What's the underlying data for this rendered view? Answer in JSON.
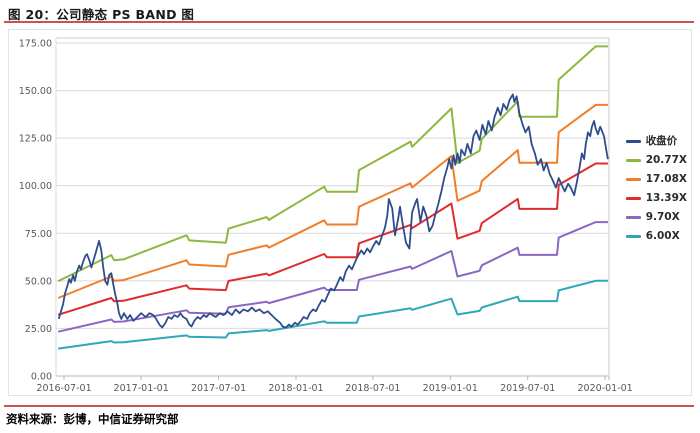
{
  "figure": {
    "title": "图 20：公司静态 PS BAND 图",
    "source": "资料来源：彭博，中信证券研究部"
  },
  "accents": {
    "rule_red": "#C9534F",
    "grid": "#d9d9d9",
    "axis_line": "#b7b7b7",
    "axis_text": "#595959"
  },
  "chart_data": {
    "type": "line",
    "title": "公司静态 PS BAND 图",
    "xlabel": "",
    "ylabel": "",
    "grid": "horizontal",
    "legend_position": "right",
    "y_axis": {
      "min": 0,
      "max": 175,
      "tick_step": 25,
      "tick_labels": [
        "0.00",
        "25.00",
        "50.00",
        "75.00",
        "100.00",
        "125.00",
        "150.00",
        "175.00"
      ]
    },
    "x_axis": {
      "labels": [
        "2016-07-01",
        "2017-01-01",
        "2017-07-01",
        "2018-01-01",
        "2018-07-01",
        "2019-01-01",
        "2019-07-01",
        "2020-01-01"
      ],
      "tick_t": [
        0.0145,
        0.154,
        0.294,
        0.434,
        0.573,
        0.713,
        0.853,
        0.993
      ]
    },
    "legend": [
      {
        "label": "收盘价",
        "color": "#2F4D8C"
      },
      {
        "label": "20.77X",
        "color": "#8FB73E"
      },
      {
        "label": "17.08X",
        "color": "#F07E28"
      },
      {
        "label": "13.39X",
        "color": "#E02C2C"
      },
      {
        "label": "9.70X",
        "color": "#8A67C3"
      },
      {
        "label": "6.00X",
        "color": "#2EA7B9"
      }
    ],
    "ps_bands": {
      "note": "band value = sales_per_share_1x * multiple",
      "multiples": [
        {
          "label": "20.77X",
          "multiple": 20.77,
          "color": "#8FB73E"
        },
        {
          "label": "17.08X",
          "multiple": 17.08,
          "color": "#F07E28"
        },
        {
          "label": "13.39X",
          "multiple": 13.39,
          "color": "#E02C2C"
        },
        {
          "label": "9.70X",
          "multiple": 9.7,
          "color": "#8A67C3"
        },
        {
          "label": "6.00X",
          "multiple": 6.0,
          "color": "#2EA7B9"
        }
      ],
      "base_1x_points": [
        [
          0.004,
          2.4
        ],
        [
          0.1,
          3.06
        ],
        [
          0.105,
          2.93
        ],
        [
          0.122,
          2.95
        ],
        [
          0.236,
          3.56
        ],
        [
          0.241,
          3.43
        ],
        [
          0.307,
          3.37
        ],
        [
          0.312,
          3.73
        ],
        [
          0.381,
          4.02
        ],
        [
          0.385,
          3.95
        ],
        [
          0.485,
          4.79
        ],
        [
          0.49,
          4.66
        ],
        [
          0.544,
          4.66
        ],
        [
          0.548,
          5.21
        ],
        [
          0.641,
          5.93
        ],
        [
          0.644,
          5.8
        ],
        [
          0.715,
          6.77
        ],
        [
          0.726,
          5.39
        ],
        [
          0.766,
          5.7
        ],
        [
          0.77,
          6.0
        ],
        [
          0.835,
          6.95
        ],
        [
          0.838,
          6.56
        ],
        [
          0.906,
          6.56
        ],
        [
          0.909,
          7.5
        ],
        [
          0.976,
          8.34
        ],
        [
          0.998,
          8.34
        ]
      ]
    },
    "price_series": {
      "name": "收盘价",
      "color": "#2F4D8C",
      "points": [
        [
          0.005,
          30
        ],
        [
          0.009,
          34
        ],
        [
          0.013,
          38
        ],
        [
          0.016,
          43
        ],
        [
          0.02,
          47
        ],
        [
          0.024,
          51
        ],
        [
          0.027,
          49
        ],
        [
          0.031,
          53
        ],
        [
          0.034,
          50
        ],
        [
          0.038,
          55
        ],
        [
          0.042,
          58
        ],
        [
          0.045,
          56
        ],
        [
          0.049,
          60
        ],
        [
          0.053,
          63
        ],
        [
          0.056,
          64
        ],
        [
          0.06,
          61
        ],
        [
          0.064,
          57
        ],
        [
          0.067,
          60
        ],
        [
          0.071,
          64
        ],
        [
          0.074,
          67
        ],
        [
          0.078,
          71
        ],
        [
          0.082,
          66
        ],
        [
          0.085,
          58
        ],
        [
          0.089,
          50
        ],
        [
          0.093,
          48
        ],
        [
          0.096,
          53
        ],
        [
          0.1,
          54
        ],
        [
          0.103,
          49
        ],
        [
          0.107,
          43
        ],
        [
          0.111,
          38
        ],
        [
          0.114,
          33
        ],
        [
          0.118,
          30
        ],
        [
          0.123,
          33
        ],
        [
          0.129,
          30
        ],
        [
          0.134,
          32
        ],
        [
          0.14,
          29
        ],
        [
          0.147,
          31
        ],
        [
          0.154,
          33
        ],
        [
          0.162,
          31
        ],
        [
          0.169,
          33
        ],
        [
          0.176,
          32
        ],
        [
          0.181,
          30
        ],
        [
          0.187,
          27
        ],
        [
          0.192,
          25.5
        ],
        [
          0.198,
          28
        ],
        [
          0.203,
          31
        ],
        [
          0.209,
          30
        ],
        [
          0.214,
          32
        ],
        [
          0.22,
          31
        ],
        [
          0.225,
          33
        ],
        [
          0.23,
          31
        ],
        [
          0.236,
          30
        ],
        [
          0.241,
          27
        ],
        [
          0.245,
          26
        ],
        [
          0.25,
          29
        ],
        [
          0.256,
          31
        ],
        [
          0.261,
          30
        ],
        [
          0.267,
          32
        ],
        [
          0.272,
          31
        ],
        [
          0.278,
          33
        ],
        [
          0.283,
          32
        ],
        [
          0.289,
          31
        ],
        [
          0.296,
          33
        ],
        [
          0.303,
          32
        ],
        [
          0.31,
          34
        ],
        [
          0.318,
          32
        ],
        [
          0.325,
          35
        ],
        [
          0.332,
          33
        ],
        [
          0.339,
          35
        ],
        [
          0.347,
          34
        ],
        [
          0.354,
          36
        ],
        [
          0.361,
          34
        ],
        [
          0.368,
          35
        ],
        [
          0.376,
          33
        ],
        [
          0.383,
          34
        ],
        [
          0.39,
          32
        ],
        [
          0.397,
          30
        ],
        [
          0.405,
          28
        ],
        [
          0.41,
          26
        ],
        [
          0.416,
          25.5
        ],
        [
          0.421,
          27
        ],
        [
          0.426,
          26
        ],
        [
          0.432,
          28
        ],
        [
          0.437,
          27
        ],
        [
          0.443,
          29
        ],
        [
          0.448,
          31
        ],
        [
          0.454,
          30
        ],
        [
          0.459,
          33
        ],
        [
          0.465,
          35
        ],
        [
          0.47,
          34
        ],
        [
          0.475,
          37
        ],
        [
          0.481,
          40
        ],
        [
          0.486,
          39
        ],
        [
          0.492,
          43
        ],
        [
          0.497,
          46
        ],
        [
          0.503,
          45
        ],
        [
          0.508,
          48
        ],
        [
          0.514,
          52
        ],
        [
          0.519,
          50
        ],
        [
          0.524,
          55
        ],
        [
          0.53,
          58
        ],
        [
          0.535,
          56
        ],
        [
          0.541,
          60
        ],
        [
          0.546,
          63
        ],
        [
          0.552,
          66
        ],
        [
          0.557,
          64
        ],
        [
          0.563,
          67
        ],
        [
          0.568,
          65
        ],
        [
          0.573,
          68
        ],
        [
          0.579,
          71
        ],
        [
          0.584,
          69
        ],
        [
          0.59,
          74
        ],
        [
          0.595,
          78
        ],
        [
          0.599,
          84
        ],
        [
          0.602,
          93
        ],
        [
          0.608,
          88
        ],
        [
          0.613,
          74
        ],
        [
          0.619,
          83
        ],
        [
          0.622,
          89
        ],
        [
          0.628,
          78
        ],
        [
          0.633,
          70
        ],
        [
          0.639,
          67
        ],
        [
          0.644,
          86
        ],
        [
          0.65,
          91
        ],
        [
          0.653,
          93
        ],
        [
          0.659,
          81
        ],
        [
          0.664,
          89
        ],
        [
          0.67,
          84
        ],
        [
          0.675,
          76
        ],
        [
          0.681,
          79
        ],
        [
          0.686,
          85
        ],
        [
          0.691,
          90
        ],
        [
          0.697,
          97
        ],
        [
          0.702,
          104
        ],
        [
          0.708,
          110
        ],
        [
          0.711,
          114
        ],
        [
          0.715,
          109
        ],
        [
          0.719,
          116
        ],
        [
          0.722,
          111
        ],
        [
          0.726,
          117
        ],
        [
          0.73,
          112
        ],
        [
          0.733,
          119
        ],
        [
          0.739,
          116
        ],
        [
          0.744,
          122
        ],
        [
          0.75,
          117
        ],
        [
          0.755,
          126
        ],
        [
          0.76,
          129
        ],
        [
          0.766,
          124
        ],
        [
          0.771,
          132
        ],
        [
          0.777,
          127
        ],
        [
          0.782,
          134
        ],
        [
          0.788,
          129
        ],
        [
          0.793,
          136
        ],
        [
          0.799,
          141
        ],
        [
          0.804,
          137
        ],
        [
          0.809,
          143
        ],
        [
          0.815,
          140
        ],
        [
          0.82,
          145
        ],
        [
          0.826,
          148
        ],
        [
          0.829,
          144
        ],
        [
          0.833,
          147
        ],
        [
          0.838,
          138
        ],
        [
          0.844,
          132
        ],
        [
          0.849,
          128
        ],
        [
          0.855,
          131
        ],
        [
          0.86,
          122
        ],
        [
          0.866,
          117
        ],
        [
          0.871,
          111
        ],
        [
          0.877,
          114
        ],
        [
          0.882,
          108
        ],
        [
          0.887,
          112
        ],
        [
          0.893,
          106
        ],
        [
          0.898,
          103
        ],
        [
          0.904,
          99
        ],
        [
          0.909,
          104
        ],
        [
          0.915,
          100
        ],
        [
          0.92,
          97
        ],
        [
          0.926,
          101
        ],
        [
          0.931,
          99
        ],
        [
          0.937,
          95
        ],
        [
          0.942,
          102
        ],
        [
          0.947,
          110
        ],
        [
          0.951,
          117
        ],
        [
          0.955,
          114
        ],
        [
          0.958,
          122
        ],
        [
          0.962,
          128
        ],
        [
          0.966,
          126
        ],
        [
          0.969,
          131
        ],
        [
          0.973,
          134
        ],
        [
          0.976,
          130
        ],
        [
          0.98,
          127
        ],
        [
          0.984,
          131
        ],
        [
          0.987,
          129
        ],
        [
          0.991,
          126
        ],
        [
          0.995,
          119
        ],
        [
          0.998,
          114
        ]
      ]
    }
  }
}
